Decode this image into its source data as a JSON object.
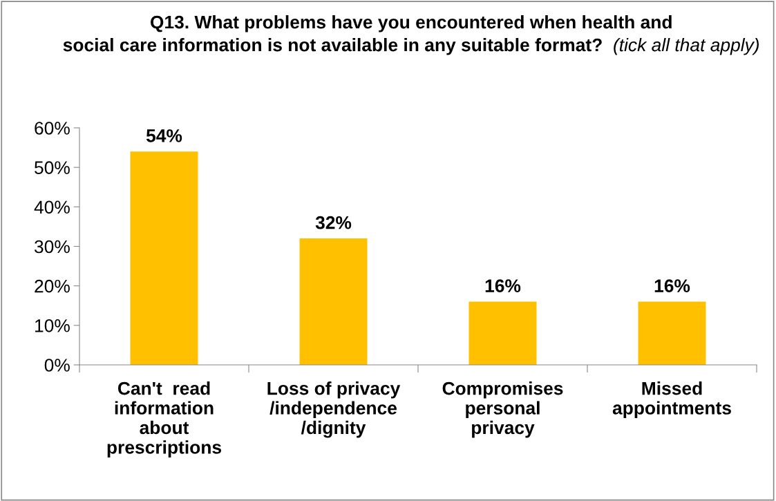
{
  "chart_data": {
    "type": "bar",
    "title": "Q13. What problems have you encountered when health and social care information is not available in any suitable format?",
    "subtitle": "(tick all that apply)",
    "categories": [
      "Can't  read information about prescriptions",
      "Loss of privacy /independence /dignity",
      "Compromises personal privacy",
      "Missed appointments"
    ],
    "values": [
      54,
      32,
      16,
      16
    ],
    "value_labels": [
      "54%",
      "32%",
      "16%",
      "16%"
    ],
    "color": "#ffc000",
    "ylim": [
      0,
      60
    ],
    "yticks": [
      {
        "value": 0,
        "label": "0%"
      },
      {
        "value": 10,
        "label": "10%"
      },
      {
        "value": 20,
        "label": "20%"
      },
      {
        "value": 30,
        "label": "30%"
      },
      {
        "value": 40,
        "label": "40%"
      },
      {
        "value": 50,
        "label": "50%"
      },
      {
        "value": 60,
        "label": "60%"
      }
    ],
    "grid": false
  }
}
